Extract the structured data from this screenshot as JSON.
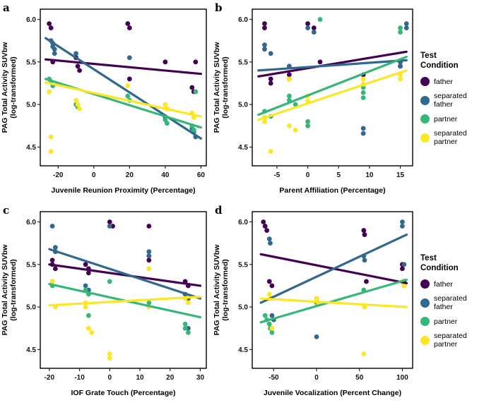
{
  "legend": {
    "title": "Test Condition",
    "entries": [
      {
        "label": "father",
        "color": "#440154"
      },
      {
        "label": "separated father",
        "color": "#31688E"
      },
      {
        "label": "partner",
        "color": "#35B779"
      },
      {
        "label": "separated partner",
        "color": "#FDE725"
      }
    ]
  },
  "chart_data": [
    {
      "type": "scatter",
      "panel": "a",
      "xlabel": "Juvenile Reunion Proximity (Percentage)",
      "ylabel_lines": [
        "PAG Total Activity SUVbw",
        "(log-transformed)"
      ],
      "xlim": [
        -30,
        63
      ],
      "ylim": [
        4.28,
        6.12
      ],
      "xticks": [
        -20,
        0,
        20,
        40,
        60
      ],
      "yticks": [
        4.5,
        5.0,
        5.5,
        6.0
      ],
      "series": [
        {
          "name": "father",
          "color": "#440154",
          "points": [
            [
              -25,
              5.95
            ],
            [
              -24,
              5.9
            ],
            [
              -23,
              5.5
            ],
            [
              -10,
              5.55
            ],
            [
              -9,
              5.45
            ],
            [
              -8,
              5.4
            ],
            [
              19,
              5.95
            ],
            [
              20,
              5.9
            ],
            [
              20,
              5.3
            ],
            [
              40,
              5.5
            ],
            [
              55,
              5.2
            ],
            [
              56,
              5.15
            ],
            [
              57,
              5.5
            ]
          ],
          "trend": [
            [
              -27,
              5.53
            ],
            [
              60,
              5.36
            ]
          ]
        },
        {
          "name": "separated father",
          "color": "#31688E",
          "points": [
            [
              -24,
              5.75
            ],
            [
              -23,
              5.72
            ],
            [
              -23,
              5.68
            ],
            [
              -22,
              5.65
            ],
            [
              -22,
              5.6
            ],
            [
              -10,
              5.6
            ],
            [
              20,
              5.55
            ],
            [
              40,
              4.85
            ],
            [
              55,
              4.72
            ],
            [
              56,
              4.68
            ],
            [
              57,
              4.62
            ]
          ],
          "trend": [
            [
              -27,
              5.78
            ],
            [
              60,
              4.6
            ]
          ]
        },
        {
          "name": "partner",
          "color": "#35B779",
          "points": [
            [
              -25,
              5.3
            ],
            [
              -24,
              5.27
            ],
            [
              -23,
              5.22
            ],
            [
              -10,
              5.0
            ],
            [
              -9,
              4.97
            ],
            [
              19,
              5.1
            ],
            [
              20,
              5.05
            ],
            [
              40,
              4.82
            ],
            [
              41,
              4.78
            ],
            [
              55,
              4.75
            ],
            [
              56,
              4.7
            ],
            [
              57,
              5.15
            ]
          ],
          "trend": [
            [
              -27,
              5.3
            ],
            [
              60,
              4.73
            ]
          ]
        },
        {
          "name": "separated partner",
          "color": "#FDE725",
          "points": [
            [
              -25,
              5.15
            ],
            [
              -24,
              4.62
            ],
            [
              -24,
              4.45
            ],
            [
              -10,
              5.05
            ],
            [
              -9,
              5.0
            ],
            [
              -8,
              4.95
            ],
            [
              19,
              5.22
            ],
            [
              40,
              5.0
            ],
            [
              41,
              4.95
            ],
            [
              55,
              4.9
            ],
            [
              56,
              4.85
            ]
          ],
          "trend": [
            [
              -27,
              5.26
            ],
            [
              60,
              4.86
            ]
          ]
        }
      ]
    },
    {
      "type": "scatter",
      "panel": "b",
      "xlabel": "Parent Affiliation (Percentage)",
      "ylabel_lines": [
        "PAG Total Activity SUVbw",
        "(log-transformed)"
      ],
      "xlim": [
        -9,
        17
      ],
      "ylim": [
        4.28,
        6.12
      ],
      "xticks": [
        -5,
        0,
        5,
        10,
        15
      ],
      "yticks": [
        4.5,
        5.0,
        5.5,
        6.0
      ],
      "series": [
        {
          "name": "father",
          "color": "#440154",
          "points": [
            [
              -7,
              5.95
            ],
            [
              -7,
              5.9
            ],
            [
              -6,
              5.3
            ],
            [
              -6,
              5.25
            ],
            [
              -3,
              5.35
            ],
            [
              -3,
              5.3
            ],
            [
              0,
              5.95
            ],
            [
              1,
              5.9
            ],
            [
              2,
              5.5
            ],
            [
              9,
              5.35
            ],
            [
              15,
              5.5
            ],
            [
              15,
              5.45
            ]
          ],
          "trend": [
            [
              -8,
              5.33
            ],
            [
              16,
              5.62
            ]
          ]
        },
        {
          "name": "separated father",
          "color": "#31688E",
          "points": [
            [
              -7,
              5.7
            ],
            [
              -7,
              5.65
            ],
            [
              -6,
              5.6
            ],
            [
              -3,
              5.45
            ],
            [
              0,
              5.9
            ],
            [
              1,
              5.85
            ],
            [
              9,
              4.72
            ],
            [
              9,
              4.66
            ],
            [
              15,
              5.5
            ],
            [
              15,
              5.45
            ],
            [
              16,
              5.95
            ],
            [
              16,
              5.9
            ]
          ],
          "trend": [
            [
              -8,
              5.4
            ],
            [
              16,
              5.52
            ]
          ]
        },
        {
          "name": "partner",
          "color": "#35B779",
          "points": [
            [
              -7,
              4.92
            ],
            [
              -6,
              4.86
            ],
            [
              -3,
              5.1
            ],
            [
              -3,
              5.05
            ],
            [
              -2,
              5.0
            ],
            [
              0,
              4.8
            ],
            [
              0,
              4.75
            ],
            [
              2,
              6.0
            ],
            [
              9,
              5.2
            ],
            [
              9,
              5.14
            ],
            [
              9,
              5.08
            ],
            [
              15,
              5.9
            ],
            [
              15,
              5.85
            ]
          ],
          "trend": [
            [
              -8,
              4.88
            ],
            [
              16,
              5.56
            ]
          ]
        },
        {
          "name": "separated partner",
          "color": "#FDE725",
          "points": [
            [
              -7,
              4.85
            ],
            [
              -7,
              4.8
            ],
            [
              -6,
              4.45
            ],
            [
              -3,
              5.3
            ],
            [
              -3,
              4.75
            ],
            [
              -2,
              4.7
            ],
            [
              0,
              5.1
            ],
            [
              0,
              5.04
            ],
            [
              9,
              5.3
            ],
            [
              9,
              5.24
            ],
            [
              15,
              5.35
            ],
            [
              15,
              5.3
            ]
          ],
          "trend": [
            [
              -8,
              4.82
            ],
            [
              16,
              5.4
            ]
          ]
        }
      ]
    },
    {
      "type": "scatter",
      "panel": "c",
      "xlabel": "IOF Grate Touch (Percentage)",
      "ylabel_lines": [
        "PAG Total Activity SUVbw",
        "(log-transformed)"
      ],
      "xlim": [
        -23,
        32
      ],
      "ylim": [
        4.28,
        6.12
      ],
      "xticks": [
        -20,
        -10,
        0,
        10,
        20,
        30
      ],
      "yticks": [
        4.5,
        5.0,
        5.5,
        6.0
      ],
      "series": [
        {
          "name": "father",
          "color": "#440154",
          "points": [
            [
              -19,
              5.55
            ],
            [
              -19,
              5.5
            ],
            [
              -18,
              5.45
            ],
            [
              -8,
              5.5
            ],
            [
              -7,
              5.45
            ],
            [
              -7,
              5.4
            ],
            [
              0,
              6.0
            ],
            [
              1,
              5.95
            ],
            [
              13,
              5.95
            ],
            [
              13,
              5.6
            ],
            [
              13,
              5.55
            ],
            [
              25,
              5.3
            ],
            [
              26,
              5.25
            ]
          ],
          "trend": [
            [
              -20,
              5.5
            ],
            [
              30,
              5.25
            ]
          ]
        },
        {
          "name": "separated father",
          "color": "#31688E",
          "points": [
            [
              -19,
              5.95
            ],
            [
              -18,
              5.7
            ],
            [
              -18,
              5.65
            ],
            [
              -8,
              5.25
            ],
            [
              -7,
              5.2
            ],
            [
              0,
              5.95
            ],
            [
              13,
              5.65
            ],
            [
              13,
              5.6
            ],
            [
              25,
              5.15
            ],
            [
              26,
              5.1
            ],
            [
              26,
              4.75
            ]
          ],
          "trend": [
            [
              -20,
              5.68
            ],
            [
              30,
              5.1
            ]
          ]
        },
        {
          "name": "partner",
          "color": "#35B779",
          "points": [
            [
              -19,
              5.3
            ],
            [
              -19,
              5.25
            ],
            [
              -8,
              5.2
            ],
            [
              -7,
              5.15
            ],
            [
              -7,
              4.9
            ],
            [
              0,
              5.3
            ],
            [
              13,
              5.05
            ],
            [
              25,
              4.8
            ],
            [
              25,
              4.75
            ],
            [
              26,
              4.7
            ]
          ],
          "trend": [
            [
              -20,
              5.27
            ],
            [
              30,
              4.88
            ]
          ]
        },
        {
          "name": "separated partner",
          "color": "#FDE725",
          "points": [
            [
              -19,
              5.3
            ],
            [
              -18,
              5.0
            ],
            [
              -8,
              5.05
            ],
            [
              -8,
              5.0
            ],
            [
              -7,
              4.75
            ],
            [
              -6,
              4.7
            ],
            [
              0,
              4.45
            ],
            [
              0,
              4.4
            ],
            [
              13,
              5.45
            ],
            [
              13,
              5.0
            ],
            [
              25,
              5.1
            ],
            [
              26,
              5.05
            ]
          ],
          "trend": [
            [
              -20,
              5.02
            ],
            [
              30,
              5.12
            ]
          ]
        }
      ]
    },
    {
      "type": "scatter",
      "panel": "d",
      "xlabel": "Juvenile Vocalization (Percent Change)",
      "ylabel_lines": [
        "PAG Total Activity SUVbw",
        "(log-transformed)"
      ],
      "xlim": [
        -75,
        112
      ],
      "ylim": [
        4.28,
        6.12
      ],
      "xticks": [
        -50,
        0,
        50,
        100
      ],
      "yticks": [
        4.5,
        5.0,
        5.5,
        6.0
      ],
      "series": [
        {
          "name": "father",
          "color": "#440154",
          "points": [
            [
              -62,
              6.0
            ],
            [
              -60,
              5.95
            ],
            [
              -58,
              5.9
            ],
            [
              -55,
              5.3
            ],
            [
              -52,
              5.25
            ],
            [
              55,
              5.9
            ],
            [
              56,
              5.85
            ],
            [
              58,
              5.3
            ],
            [
              100,
              5.5
            ],
            [
              100,
              5.45
            ],
            [
              102,
              5.3
            ]
          ],
          "trend": [
            [
              -65,
              5.62
            ],
            [
              105,
              5.28
            ]
          ]
        },
        {
          "name": "separated father",
          "color": "#31688E",
          "points": [
            [
              -55,
              5.8
            ],
            [
              -54,
              5.75
            ],
            [
              -52,
              4.9
            ],
            [
              -50,
              4.85
            ],
            [
              0,
              4.65
            ],
            [
              55,
              5.6
            ],
            [
              56,
              5.55
            ],
            [
              100,
              6.0
            ],
            [
              100,
              5.95
            ],
            [
              102,
              5.5
            ]
          ],
          "trend": [
            [
              -65,
              5.05
            ],
            [
              105,
              5.85
            ]
          ]
        },
        {
          "name": "partner",
          "color": "#35B779",
          "points": [
            [
              -60,
              4.9
            ],
            [
              -58,
              4.85
            ],
            [
              -55,
              4.8
            ],
            [
              -54,
              4.75
            ],
            [
              -52,
              4.7
            ],
            [
              0,
              5.1
            ],
            [
              0,
              5.05
            ],
            [
              55,
              5.2
            ],
            [
              100,
              5.3
            ],
            [
              102,
              5.25
            ]
          ],
          "trend": [
            [
              -65,
              4.82
            ],
            [
              105,
              5.32
            ]
          ]
        },
        {
          "name": "separated partner",
          "color": "#FDE725",
          "points": [
            [
              -55,
              5.15
            ],
            [
              -54,
              5.1
            ],
            [
              -52,
              4.75
            ],
            [
              0,
              5.1
            ],
            [
              2,
              5.05
            ],
            [
              55,
              4.45
            ],
            [
              56,
              5.0
            ],
            [
              100,
              5.3
            ],
            [
              102,
              5.25
            ]
          ],
          "trend": [
            [
              -65,
              5.1
            ],
            [
              105,
              5.0
            ]
          ]
        }
      ]
    }
  ]
}
